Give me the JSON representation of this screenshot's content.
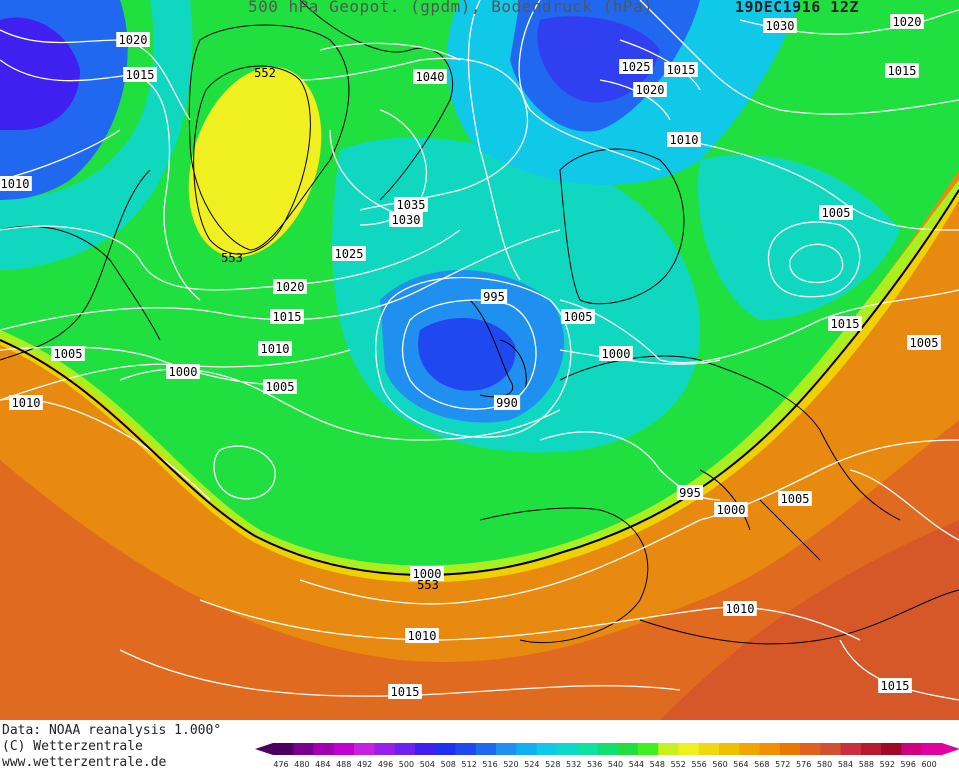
{
  "header": {
    "title": "500 hPa Geopot. (gpdm), Bodendruck (hPa)",
    "date": "19DEC1916 12Z"
  },
  "footer": {
    "data_source": "Data: NOAA reanalysis 1.000°",
    "copyright": "(C) Wetterzentrale",
    "url": "www.wetterzentrale.de"
  },
  "colorbar": {
    "ticks": [
      "476",
      "480",
      "484",
      "488",
      "492",
      "496",
      "500",
      "504",
      "508",
      "512",
      "516",
      "520",
      "524",
      "528",
      "532",
      "536",
      "540",
      "544",
      "548",
      "552",
      "556",
      "560",
      "564",
      "568",
      "572",
      "576",
      "580",
      "584",
      "588",
      "592",
      "596",
      "600"
    ],
    "colors": [
      "#4a0060",
      "#7a0090",
      "#a000b0",
      "#c000d0",
      "#c820e0",
      "#9820e8",
      "#7020f0",
      "#4020f0",
      "#2030f0",
      "#2048f0",
      "#2068f0",
      "#2090f0",
      "#10b0f0",
      "#10c8e8",
      "#10d8c8",
      "#10e0a0",
      "#10e070",
      "#20e040",
      "#40f020",
      "#c8f020",
      "#f0f020",
      "#f0d810",
      "#f0c000",
      "#f0a800",
      "#f09000",
      "#e87800",
      "#e06020",
      "#d05030",
      "#c83040",
      "#b81830",
      "#a00828",
      "#d00080",
      "#e000a0"
    ]
  },
  "isobar_labels": [
    "1020",
    "1015",
    "1040",
    "1030",
    "1020",
    "1025",
    "1015",
    "1020",
    "1010",
    "1015",
    "1010",
    "1035",
    "1030",
    "1025",
    "1005",
    "1020",
    "1015",
    "1010",
    "1005",
    "995",
    "1005",
    "1000",
    "1005",
    "1015",
    "1005",
    "1000",
    "1010",
    "990",
    "995",
    "1000",
    "1005",
    "1000",
    "1010",
    "1010",
    "1015",
    "1015"
  ],
  "height_labels": [
    "552",
    "553",
    "553"
  ]
}
